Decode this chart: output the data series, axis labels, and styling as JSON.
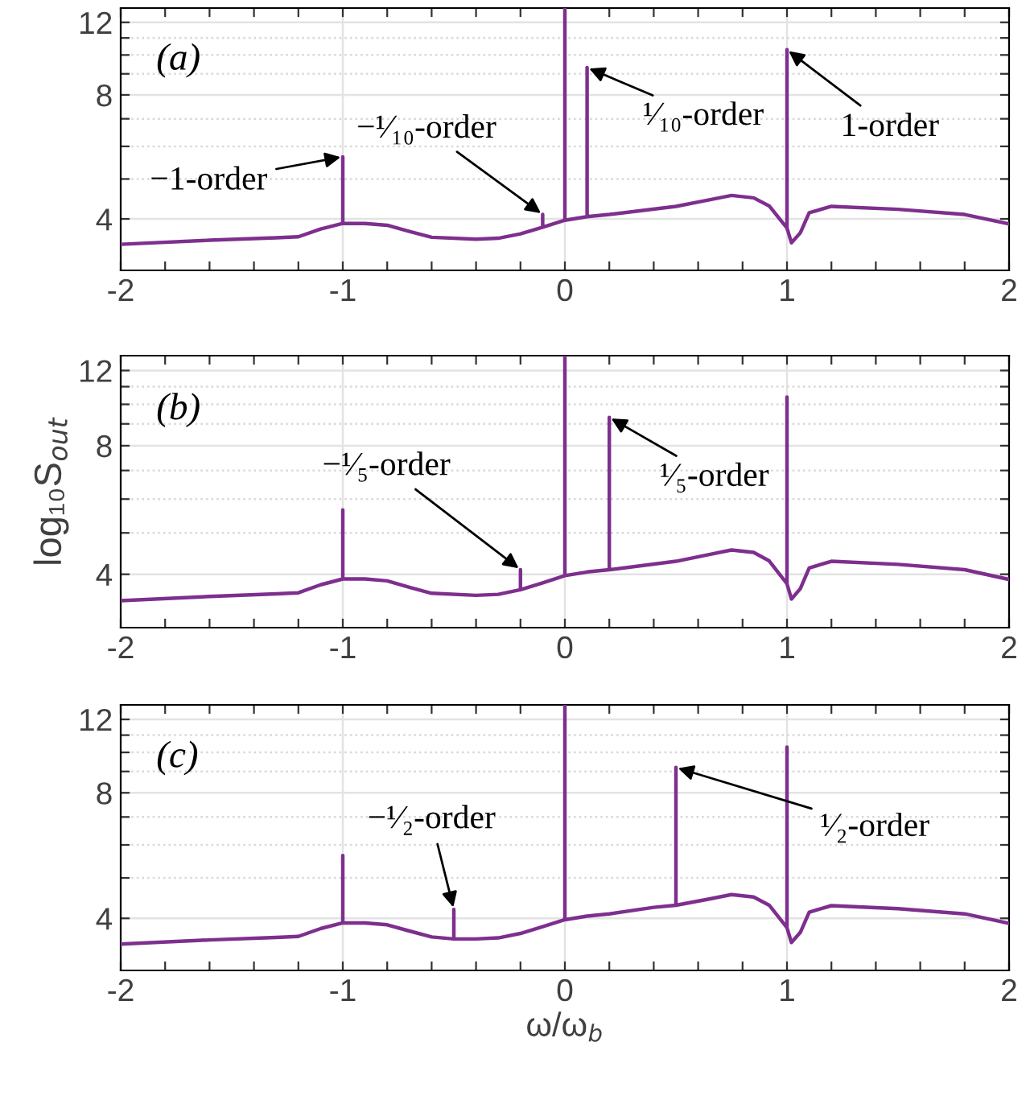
{
  "chart_data": [
    {
      "type": "line",
      "annotations": [
        "(a)",
        {
          "text": "−1-order",
          "x": -1,
          "y": 5.66
        },
        {
          "text": "−¹⁄₁₀-order",
          "x": -0.1,
          "y": 4.1
        },
        {
          "text": "¹⁄₁₀-order",
          "x": 0.1,
          "y": 9.32
        },
        {
          "text": "1-order",
          "x": 1,
          "y": 10.3
        }
      ],
      "series": [
        {
          "color": "#7e2f8e",
          "x": [
            -2,
            -1.6,
            -1.3,
            -1.2,
            -1.1,
            -1,
            -1,
            -1,
            -0.9,
            -0.8,
            -0.7,
            -0.6,
            -0.4,
            -0.3,
            -0.2,
            -0.1,
            -0.1,
            -0.1,
            0,
            0,
            0,
            0.1,
            0.1,
            0.1,
            0.2,
            0.5,
            0.65,
            0.75,
            0.85,
            0.92,
            0.97,
            1,
            1,
            1,
            1.02,
            1.06,
            1.1,
            1.2,
            1.5,
            1.8,
            2
          ],
          "values": [
            3.47,
            3.55,
            3.6,
            3.62,
            3.78,
            3.9,
            5.66,
            3.9,
            3.9,
            3.86,
            3.73,
            3.61,
            3.57,
            3.59,
            3.68,
            3.82,
            4.1,
            3.82,
            3.97,
            13,
            3.97,
            4.05,
            9.32,
            4.05,
            4.1,
            4.29,
            4.45,
            4.56,
            4.5,
            4.3,
            3.98,
            3.8,
            10.3,
            3.8,
            3.5,
            3.7,
            4.14,
            4.29,
            4.22,
            4.1,
            3.89
          ]
        }
      ],
      "log": "y",
      "xlim": [
        -2,
        2
      ],
      "ylim": [
        3,
        13
      ],
      "xticks": [
        -2,
        {
          "value": -1.8,
          "label": null
        },
        {
          "value": -1.6,
          "label": null
        },
        {
          "value": -1.4,
          "label": null
        },
        {
          "value": -1.2,
          "label": null
        },
        -1,
        {
          "value": -0.8,
          "label": null
        },
        {
          "value": -0.6,
          "label": null
        },
        {
          "value": -0.4,
          "label": null
        },
        {
          "value": -0.2,
          "label": null
        },
        0,
        {
          "value": 0.2,
          "label": null
        },
        {
          "value": 0.4,
          "label": null
        },
        {
          "value": 0.6,
          "label": null
        },
        {
          "value": 0.8,
          "label": null
        },
        1,
        {
          "value": 1.2,
          "label": null
        },
        {
          "value": 1.4,
          "label": null
        },
        {
          "value": 1.6,
          "label": null
        },
        {
          "value": 1.8,
          "label": null
        },
        2
      ],
      "yticks": [
        4,
        {
          "value": 5,
          "label": null
        },
        {
          "value": 6,
          "label": null
        },
        {
          "value": 7,
          "label": null
        },
        8,
        {
          "value": 9,
          "label": null
        },
        {
          "value": 10,
          "label": null
        },
        {
          "value": 11,
          "label": null
        },
        12
      ],
      "grid": true
    },
    {
      "type": "line",
      "ylabel": "log₁₀S$_{out}$",
      "annotations": [
        "(b)",
        {
          "text": "−¹⁄₅-order",
          "x": -0.2,
          "y": 4.1
        },
        {
          "text": "¹⁄₅-order",
          "x": 0.2,
          "y": 9.32
        }
      ],
      "series": [
        {
          "color": "#7e2f8e",
          "x": [
            -2,
            -1.6,
            -1.3,
            -1.2,
            -1.1,
            -1,
            -1,
            -1,
            -0.9,
            -0.8,
            -0.7,
            -0.6,
            -0.4,
            -0.3,
            -0.2,
            -0.2,
            -0.2,
            -0.1,
            0,
            0,
            0,
            0.1,
            0.2,
            0.2,
            0.2,
            0.5,
            0.65,
            0.75,
            0.85,
            0.92,
            0.97,
            1,
            1,
            1,
            1.02,
            1.06,
            1.1,
            1.2,
            1.5,
            1.8,
            2
          ],
          "values": [
            3.47,
            3.55,
            3.6,
            3.62,
            3.78,
            3.9,
            5.66,
            3.9,
            3.9,
            3.86,
            3.73,
            3.61,
            3.57,
            3.59,
            3.68,
            4.1,
            3.68,
            3.82,
            3.97,
            13,
            3.97,
            4.05,
            4.1,
            9.32,
            4.1,
            4.29,
            4.45,
            4.56,
            4.5,
            4.3,
            3.98,
            3.8,
            10.4,
            3.8,
            3.5,
            3.7,
            4.14,
            4.29,
            4.22,
            4.1,
            3.89
          ]
        }
      ],
      "log": "y",
      "xlim": [
        -2,
        2
      ],
      "ylim": [
        3,
        13
      ],
      "xticks": [
        -2,
        {
          "value": -1.8,
          "label": null
        },
        {
          "value": -1.6,
          "label": null
        },
        {
          "value": -1.4,
          "label": null
        },
        {
          "value": -1.2,
          "label": null
        },
        -1,
        {
          "value": -0.8,
          "label": null
        },
        {
          "value": -0.6,
          "label": null
        },
        {
          "value": -0.4,
          "label": null
        },
        {
          "value": -0.2,
          "label": null
        },
        0,
        {
          "value": 0.2,
          "label": null
        },
        {
          "value": 0.4,
          "label": null
        },
        {
          "value": 0.6,
          "label": null
        },
        {
          "value": 0.8,
          "label": null
        },
        1,
        {
          "value": 1.2,
          "label": null
        },
        {
          "value": 1.4,
          "label": null
        },
        {
          "value": 1.6,
          "label": null
        },
        {
          "value": 1.8,
          "label": null
        },
        2
      ],
      "yticks": [
        4,
        {
          "value": 5,
          "label": null
        },
        {
          "value": 6,
          "label": null
        },
        {
          "value": 7,
          "label": null
        },
        8,
        {
          "value": 9,
          "label": null
        },
        {
          "value": 10,
          "label": null
        },
        {
          "value": 11,
          "label": null
        },
        12
      ],
      "grid": true
    },
    {
      "type": "line",
      "xlabel": "ω/ω$_{b}$",
      "annotations": [
        "(c)",
        {
          "text": "−¹⁄₂-order",
          "x": -0.5,
          "y": 4.2
        },
        {
          "text": "¹⁄₂-order",
          "x": 0.5,
          "y": 9.2
        }
      ],
      "series": [
        {
          "color": "#7e2f8e",
          "x": [
            -2,
            -1.6,
            -1.3,
            -1.2,
            -1.1,
            -1,
            -1,
            -1,
            -0.9,
            -0.8,
            -0.7,
            -0.6,
            -0.5,
            -0.5,
            -0.5,
            -0.4,
            -0.3,
            -0.2,
            -0.1,
            0,
            0,
            0,
            0.1,
            0.2,
            0.4,
            0.5,
            0.5,
            0.5,
            0.65,
            0.75,
            0.85,
            0.92,
            0.97,
            1,
            1,
            1,
            1.02,
            1.06,
            1.1,
            1.2,
            1.5,
            1.8,
            2
          ],
          "values": [
            3.47,
            3.55,
            3.6,
            3.62,
            3.78,
            3.9,
            5.66,
            3.9,
            3.9,
            3.86,
            3.73,
            3.61,
            3.57,
            4.2,
            3.57,
            3.57,
            3.59,
            3.68,
            3.82,
            3.97,
            13,
            3.97,
            4.05,
            4.1,
            4.25,
            4.3,
            9.2,
            4.3,
            4.45,
            4.56,
            4.5,
            4.3,
            3.98,
            3.8,
            10.3,
            3.8,
            3.5,
            3.7,
            4.14,
            4.29,
            4.22,
            4.1,
            3.89
          ]
        }
      ],
      "log": "y",
      "xlim": [
        -2,
        2
      ],
      "ylim": [
        3,
        13
      ],
      "xticks": [
        -2,
        {
          "value": -1.8,
          "label": null
        },
        {
          "value": -1.6,
          "label": null
        },
        {
          "value": -1.4,
          "label": null
        },
        {
          "value": -1.2,
          "label": null
        },
        -1,
        {
          "value": -0.8,
          "label": null
        },
        {
          "value": -0.6,
          "label": null
        },
        {
          "value": -0.4,
          "label": null
        },
        {
          "value": -0.2,
          "label": null
        },
        0,
        {
          "value": 0.2,
          "label": null
        },
        {
          "value": 0.4,
          "label": null
        },
        {
          "value": 0.6,
          "label": null
        },
        {
          "value": 0.8,
          "label": null
        },
        1,
        {
          "value": 1.2,
          "label": null
        },
        {
          "value": 1.4,
          "label": null
        },
        {
          "value": 1.6,
          "label": null
        },
        {
          "value": 1.8,
          "label": null
        },
        2
      ],
      "yticks": [
        4,
        {
          "value": 5,
          "label": null
        },
        {
          "value": 6,
          "label": null
        },
        {
          "value": 7,
          "label": null
        },
        8,
        {
          "value": 9,
          "label": null
        },
        {
          "value": 10,
          "label": null
        },
        {
          "value": 11,
          "label": null
        },
        12
      ],
      "grid": true
    }
  ]
}
